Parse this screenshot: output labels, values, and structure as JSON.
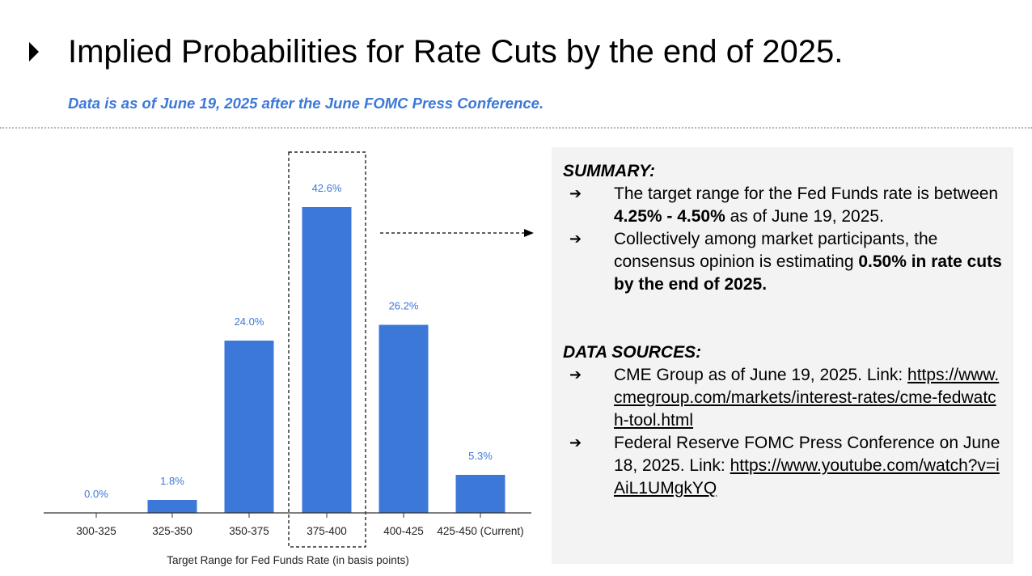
{
  "title": "Implied Probabilities for Rate Cuts by the end of 2025.",
  "subtitle": "Data is as of June 19, 2025 after the June FOMC Press Conference.",
  "icons": {
    "title_bullet": "triangle-right-icon",
    "list_arrow": "arrow-right-icon"
  },
  "colors": {
    "bar": "#3c78d8",
    "subtitle": "#3c78d8",
    "panel_bg": "#f3f3f3"
  },
  "summary": {
    "heading": "SUMMARY:",
    "arrow": "➔",
    "item1": {
      "pre": "The target range for the Fed Funds rate is between ",
      "bold": "4.25% - 4.50%",
      "post": " as of June 19, 2025."
    },
    "item2": {
      "pre": "Collectively among market participants, the consensus opinion is estimating ",
      "bold": "0.50% in rate cuts by the end of 2025."
    }
  },
  "sources": {
    "heading": "DATA SOURCES:",
    "item1": {
      "text": "CME Group as of June 19, 2025. Link: ",
      "link": "https://www.cmegroup.com/markets/interest-rates/cme-fedwatch-tool.html"
    },
    "item2": {
      "text": "Federal Reserve FOMC Press Conference on June 18, 2025. Link: ",
      "link": "https://www.youtube.com/watch?v=iAiL1UMgkYQ"
    }
  },
  "chart_data": {
    "type": "bar",
    "categories": [
      "300-325",
      "325-350",
      "350-375",
      "375-400",
      "400-425",
      "425-450 (Current)"
    ],
    "values": [
      0.0,
      1.8,
      24.0,
      42.6,
      26.2,
      5.3
    ],
    "data_labels": [
      "0.0%",
      "1.8%",
      "24.0%",
      "42.6%",
      "26.2%",
      "5.3%"
    ],
    "title": "",
    "xlabel": "Target Range for Fed Funds Rate (in basis points)",
    "ylabel": "",
    "ylim": [
      0,
      42.6
    ],
    "grid": false,
    "legend": "none",
    "highlighted_category": "375-400"
  }
}
